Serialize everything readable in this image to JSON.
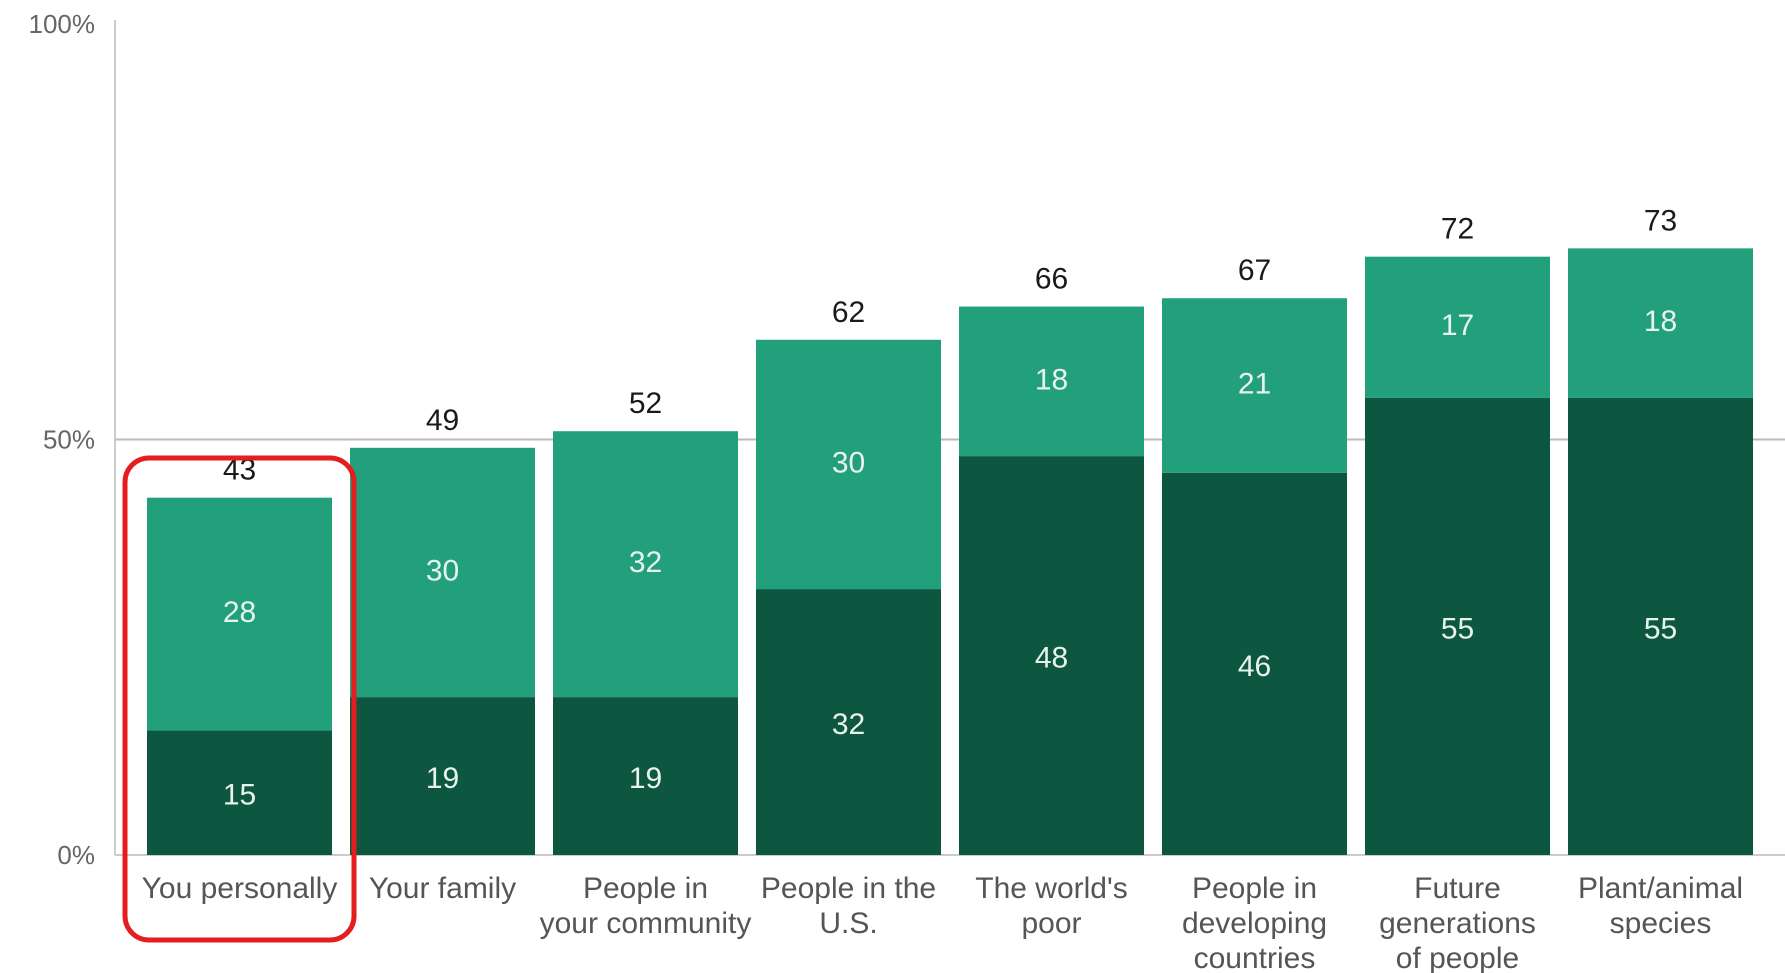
{
  "chart_data": {
    "type": "bar",
    "stacked": true,
    "categories": [
      [
        "You personally"
      ],
      [
        "Your family"
      ],
      [
        "People in",
        "your community"
      ],
      [
        "People in the",
        "U.S."
      ],
      [
        "The world's",
        "poor"
      ],
      [
        "People in",
        "developing",
        "countries"
      ],
      [
        "Future",
        "generations",
        "of people"
      ],
      [
        "Plant/animal",
        "species"
      ]
    ],
    "series": [
      {
        "values": [
          15,
          19,
          19,
          32,
          48,
          46,
          55,
          55
        ],
        "color": "#0d5640"
      },
      {
        "values": [
          28,
          30,
          32,
          30,
          18,
          21,
          17,
          18
        ],
        "color": "#22a07c"
      }
    ],
    "totals": [
      43,
      49,
      52,
      62,
      66,
      67,
      72,
      73
    ],
    "ylim": [
      0,
      100
    ],
    "yticks": [
      "0%",
      "50%",
      "100%"
    ],
    "grid": "50% line only",
    "highlight": {
      "category_index": 0,
      "color": "#e41e1e"
    }
  }
}
